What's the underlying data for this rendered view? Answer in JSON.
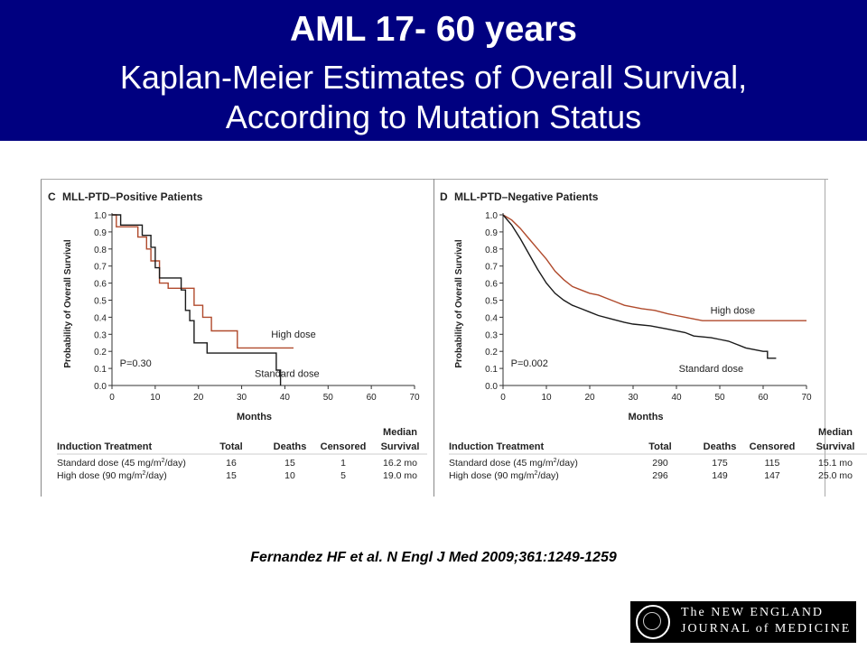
{
  "banner": {
    "title": "AML 17- 60 years",
    "subtitle_line1": "Kaplan-Meier Estimates of Overall Survival,",
    "subtitle_line2": "According to Mutation Status"
  },
  "citation": "Fernandez HF et al. N Engl J Med 2009;361:1249-1259",
  "logo": {
    "line1": "The NEW ENGLAND",
    "line2": "JOURNAL of MEDICINE"
  },
  "colors": {
    "banner": "#000080",
    "high_dose": "#b04a2c",
    "standard_dose": "#1a1a1a"
  },
  "chart_data": [
    {
      "type": "line",
      "panel": "C",
      "title": "MLL-PTD–Positive Patients",
      "xlabel": "Months",
      "ylabel": "Probability of Overall Survival",
      "xlim": [
        0,
        70
      ],
      "ylim": [
        0,
        1
      ],
      "xticks": [
        "0",
        "10",
        "20",
        "30",
        "40",
        "50",
        "60",
        "70"
      ],
      "yticks": [
        "0.0",
        "0.1",
        "0.2",
        "0.3",
        "0.4",
        "0.5",
        "0.6",
        "0.7",
        "0.8",
        "0.9",
        "1.0"
      ],
      "p_value": "P=0.30",
      "series": [
        {
          "name": "High dose",
          "points": [
            [
              0,
              1.0
            ],
            [
              1,
              1.0
            ],
            [
              1,
              0.93
            ],
            [
              6,
              0.93
            ],
            [
              6,
              0.87
            ],
            [
              8,
              0.87
            ],
            [
              8,
              0.8
            ],
            [
              9,
              0.8
            ],
            [
              9,
              0.73
            ],
            [
              11,
              0.73
            ],
            [
              11,
              0.6
            ],
            [
              13,
              0.6
            ],
            [
              13,
              0.57
            ],
            [
              19,
              0.57
            ],
            [
              19,
              0.47
            ],
            [
              21,
              0.47
            ],
            [
              21,
              0.4
            ],
            [
              23,
              0.4
            ],
            [
              23,
              0.32
            ],
            [
              29,
              0.32
            ],
            [
              29,
              0.22
            ],
            [
              42,
              0.22
            ]
          ]
        },
        {
          "name": "Standard dose",
          "points": [
            [
              0,
              1.0
            ],
            [
              2,
              1.0
            ],
            [
              2,
              0.94
            ],
            [
              7,
              0.94
            ],
            [
              7,
              0.88
            ],
            [
              9,
              0.88
            ],
            [
              9,
              0.81
            ],
            [
              10,
              0.81
            ],
            [
              10,
              0.69
            ],
            [
              11,
              0.69
            ],
            [
              11,
              0.63
            ],
            [
              16,
              0.63
            ],
            [
              16,
              0.56
            ],
            [
              17,
              0.56
            ],
            [
              17,
              0.44
            ],
            [
              18,
              0.44
            ],
            [
              18,
              0.38
            ],
            [
              19,
              0.38
            ],
            [
              19,
              0.25
            ],
            [
              22,
              0.25
            ],
            [
              22,
              0.19
            ],
            [
              38,
              0.19
            ],
            [
              38,
              0.09
            ],
            [
              39,
              0.09
            ],
            [
              39,
              0.0
            ]
          ]
        }
      ],
      "table": {
        "headers": [
          "Induction Treatment",
          "Total",
          "Deaths",
          "Censored",
          "Median",
          "Survival"
        ],
        "rows": [
          {
            "treatment": "Standard dose (45 mg/m",
            "unit_tail": "/day)",
            "total": "16",
            "deaths": "15",
            "censored": "1",
            "median": "16.2 mo"
          },
          {
            "treatment": "High dose (90 mg/m",
            "unit_tail": "/day)",
            "total": "15",
            "deaths": "10",
            "censored": "5",
            "median": "19.0 mo"
          }
        ]
      }
    },
    {
      "type": "line",
      "panel": "D",
      "title": "MLL-PTD–Negative Patients",
      "xlabel": "Months",
      "ylabel": "Probability of Overall Survival",
      "xlim": [
        0,
        70
      ],
      "ylim": [
        0,
        1
      ],
      "xticks": [
        "0",
        "10",
        "20",
        "30",
        "40",
        "50",
        "60",
        "70"
      ],
      "yticks": [
        "0.0",
        "0.1",
        "0.2",
        "0.3",
        "0.4",
        "0.5",
        "0.6",
        "0.7",
        "0.8",
        "0.9",
        "1.0"
      ],
      "p_value": "P=0.002",
      "series": [
        {
          "name": "High dose",
          "points": [
            [
              0,
              1.0
            ],
            [
              2,
              0.97
            ],
            [
              4,
              0.92
            ],
            [
              6,
              0.86
            ],
            [
              8,
              0.8
            ],
            [
              10,
              0.74
            ],
            [
              12,
              0.67
            ],
            [
              14,
              0.62
            ],
            [
              16,
              0.58
            ],
            [
              18,
              0.56
            ],
            [
              20,
              0.54
            ],
            [
              22,
              0.53
            ],
            [
              24,
              0.51
            ],
            [
              26,
              0.49
            ],
            [
              28,
              0.47
            ],
            [
              30,
              0.46
            ],
            [
              32,
              0.45
            ],
            [
              35,
              0.44
            ],
            [
              38,
              0.42
            ],
            [
              40,
              0.41
            ],
            [
              44,
              0.39
            ],
            [
              46,
              0.38
            ],
            [
              50,
              0.38
            ],
            [
              55,
              0.38
            ],
            [
              60,
              0.38
            ],
            [
              65,
              0.38
            ],
            [
              70,
              0.38
            ]
          ]
        },
        {
          "name": "Standard dose",
          "points": [
            [
              0,
              1.0
            ],
            [
              2,
              0.94
            ],
            [
              4,
              0.86
            ],
            [
              6,
              0.77
            ],
            [
              8,
              0.68
            ],
            [
              10,
              0.6
            ],
            [
              12,
              0.54
            ],
            [
              14,
              0.5
            ],
            [
              16,
              0.47
            ],
            [
              18,
              0.45
            ],
            [
              20,
              0.43
            ],
            [
              22,
              0.41
            ],
            [
              25,
              0.39
            ],
            [
              28,
              0.37
            ],
            [
              30,
              0.36
            ],
            [
              34,
              0.35
            ],
            [
              38,
              0.33
            ],
            [
              42,
              0.31
            ],
            [
              44,
              0.29
            ],
            [
              48,
              0.28
            ],
            [
              50,
              0.27
            ],
            [
              52,
              0.26
            ],
            [
              54,
              0.24
            ],
            [
              56,
              0.22
            ],
            [
              58,
              0.21
            ],
            [
              60,
              0.2
            ],
            [
              61,
              0.2
            ],
            [
              61,
              0.16
            ],
            [
              63,
              0.16
            ]
          ]
        }
      ],
      "table": {
        "headers": [
          "Induction Treatment",
          "Total",
          "Deaths",
          "Censored",
          "Median",
          "Survival"
        ],
        "rows": [
          {
            "treatment": "Standard dose (45 mg/m",
            "unit_tail": "/day)",
            "total": "290",
            "deaths": "175",
            "censored": "115",
            "median": "15.1 mo"
          },
          {
            "treatment": "High dose (90 mg/m",
            "unit_tail": "/day)",
            "total": "296",
            "deaths": "149",
            "censored": "147",
            "median": "25.0 mo"
          }
        ]
      }
    }
  ]
}
